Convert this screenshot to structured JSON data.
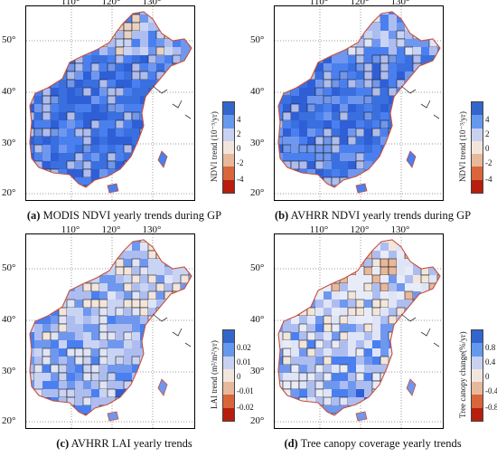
{
  "lon_ticks": [
    "110°",
    "120°",
    "130°"
  ],
  "lat_ticks": [
    "50°",
    "40°",
    "30°",
    "20°"
  ],
  "panels": [
    {
      "id": "a",
      "caption_letter": "(a)",
      "caption_text": " MODIS NDVI yearly trends during GP",
      "colorbar_title": "NDVI trend (10⁻³/yr)",
      "colorbar_ticks": [
        "4",
        "2",
        "0",
        "-2",
        "-4"
      ],
      "colorbar_colors": [
        "#3366cc",
        "#6699ee",
        "#c8d2f0",
        "#f2e6dc",
        "#e8b89a",
        "#d9663a",
        "#b81e0e"
      ]
    },
    {
      "id": "b",
      "caption_letter": "(b)",
      "caption_text": " AVHRR NDVI yearly trends during GP",
      "colorbar_title": "NDVI trend (10⁻³/yr)",
      "colorbar_ticks": [
        "4",
        "2",
        "0",
        "-2",
        "-4"
      ],
      "colorbar_colors": [
        "#3366cc",
        "#6699ee",
        "#c8d2f0",
        "#f2e6dc",
        "#e8b89a",
        "#d9663a",
        "#b81e0e"
      ]
    },
    {
      "id": "c",
      "caption_letter": "(c)",
      "caption_text": " AVHRR LAI yearly trends",
      "colorbar_title": "LAI trend (m²/m²/yr)",
      "colorbar_ticks": [
        "0.02",
        "0.01",
        "0",
        "-0.01",
        "-0.02"
      ],
      "colorbar_colors": [
        "#3366cc",
        "#6699ee",
        "#c8d2f0",
        "#f2e6dc",
        "#e8b89a",
        "#d9663a",
        "#b81e0e"
      ]
    },
    {
      "id": "d",
      "caption_letter": "(d)",
      "caption_text": " Tree canopy coverage yearly trends",
      "colorbar_title": "Tree canopy change(%/yr)",
      "colorbar_ticks": [
        "0.8",
        "0.4",
        "0",
        "-0.4",
        "-0.8"
      ],
      "colorbar_colors": [
        "#3366cc",
        "#6699ee",
        "#c8d2f0",
        "#f2e6dc",
        "#e8b89a",
        "#d9663a",
        "#b81e0e"
      ]
    }
  ]
}
